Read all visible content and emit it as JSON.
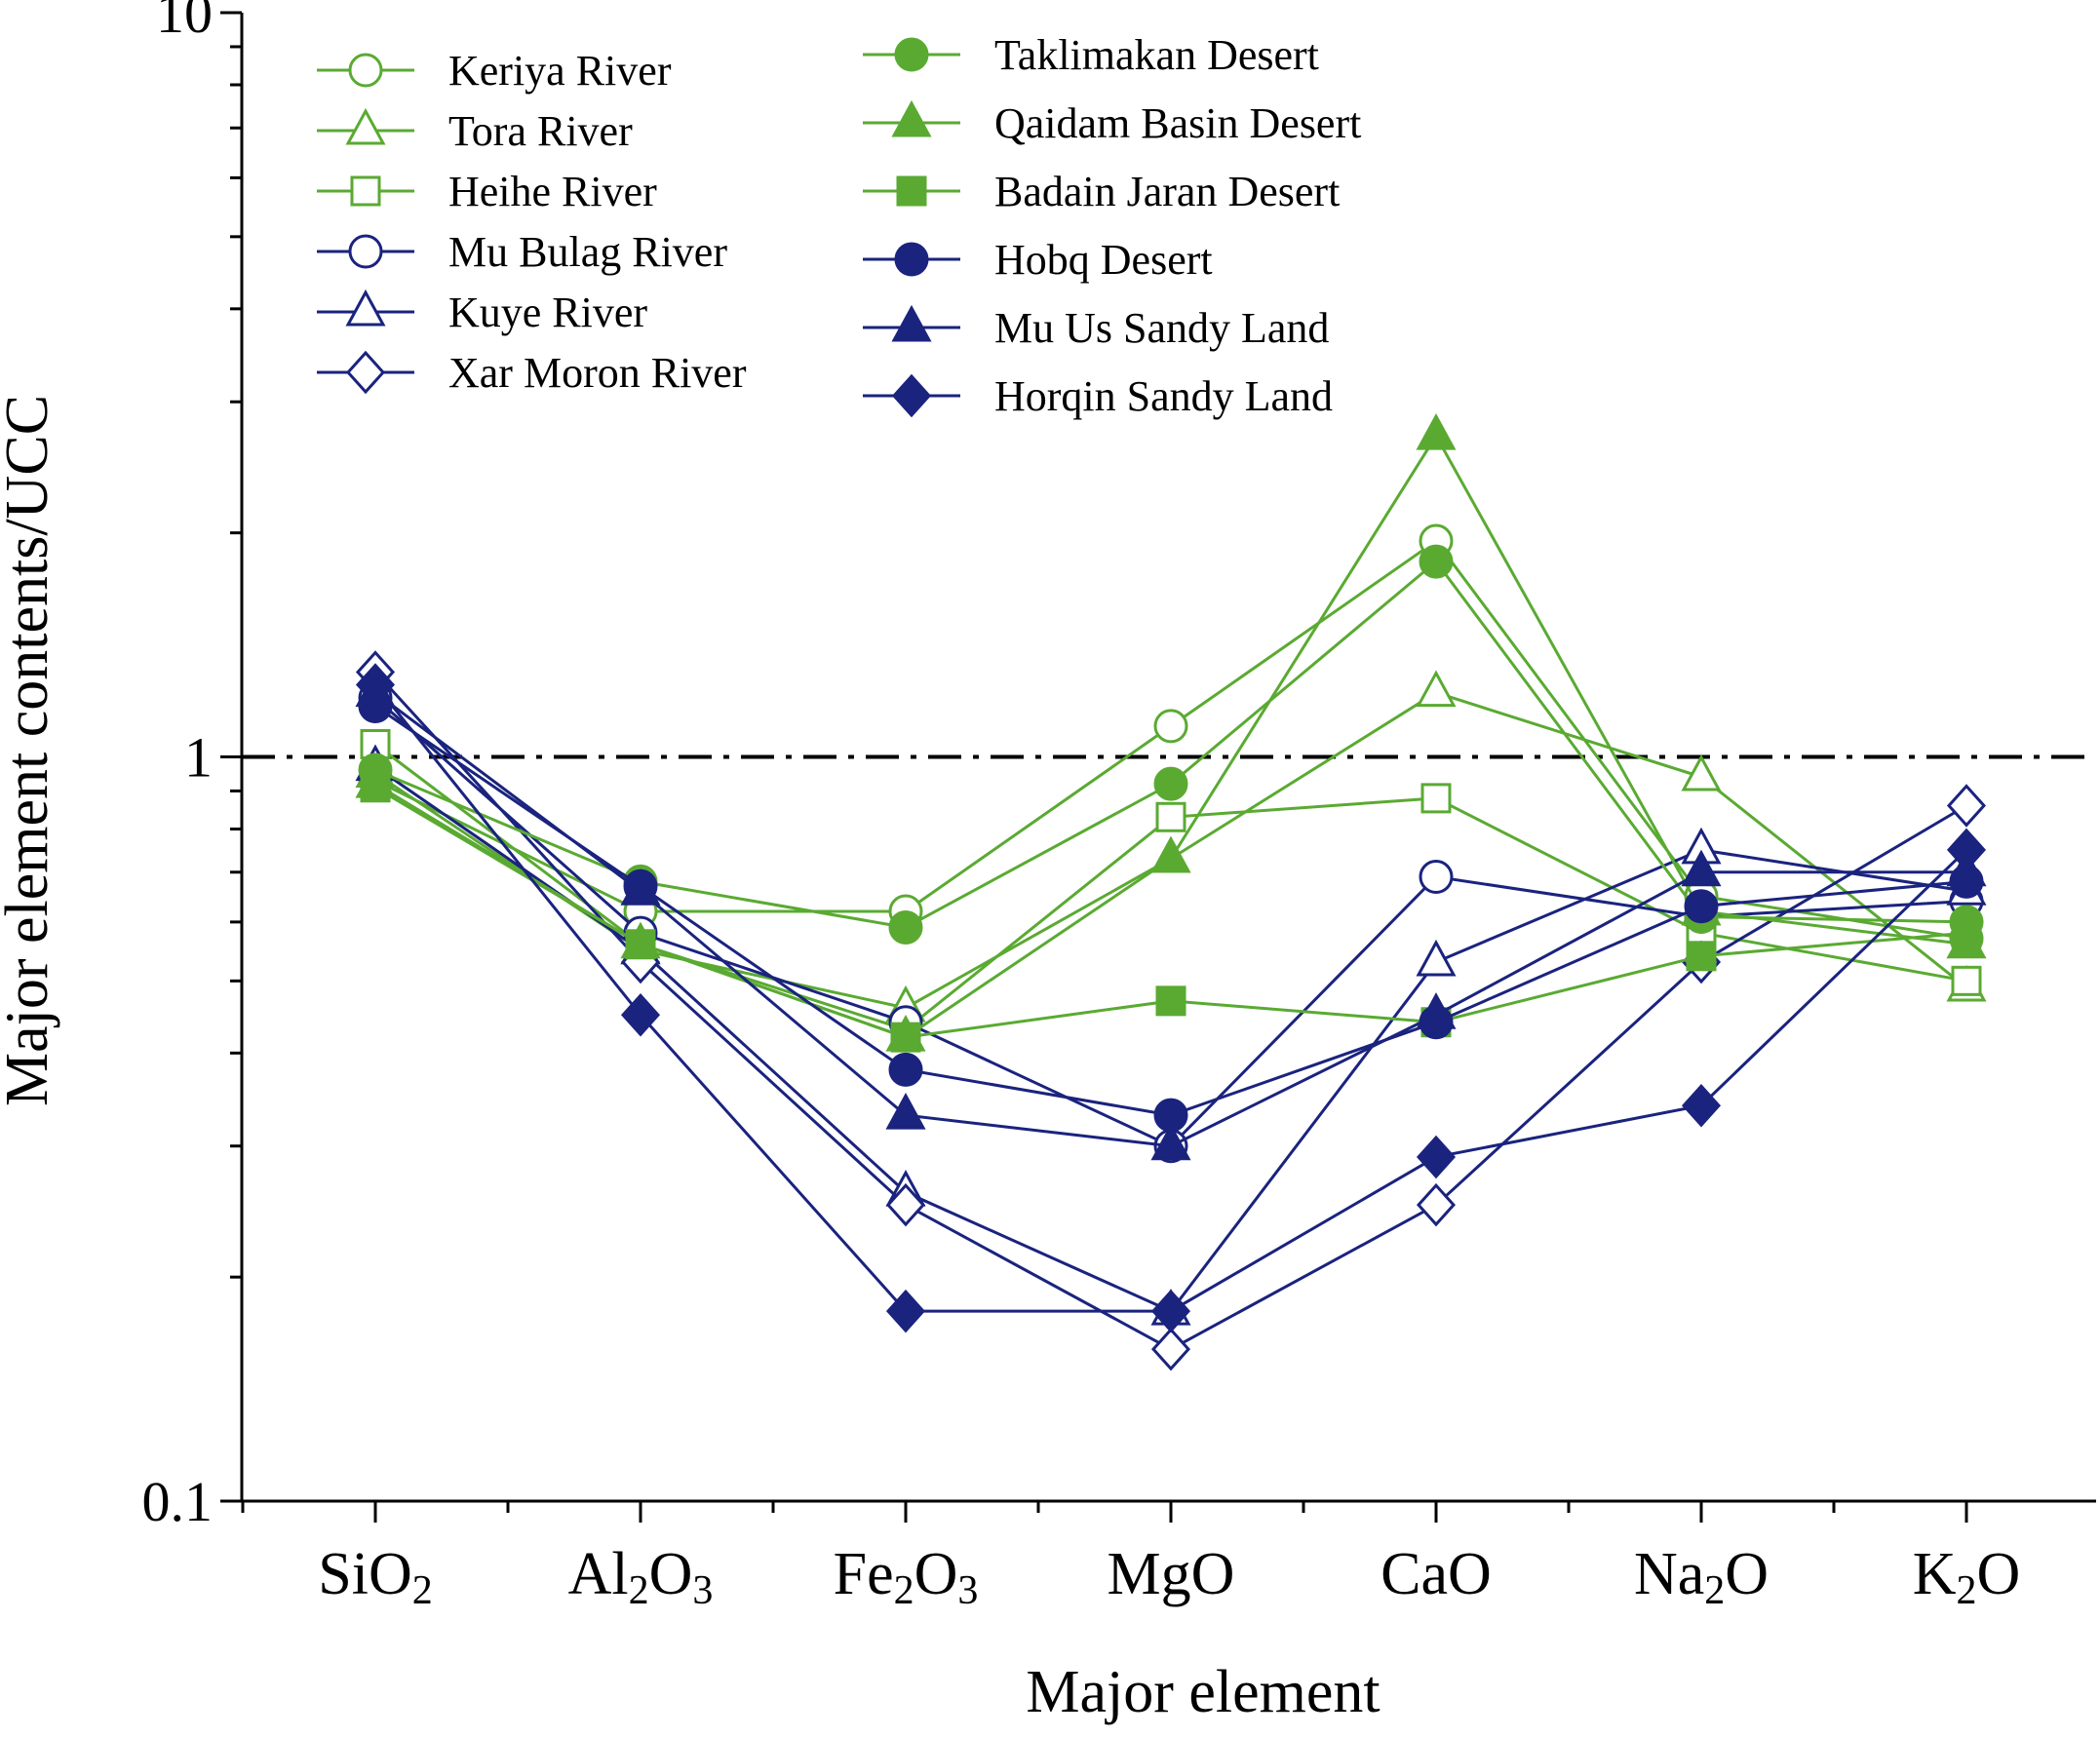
{
  "chart_data": {
    "type": "line",
    "xlabel": "Major element",
    "ylabel": "Major element contents/UCC",
    "yscale": "log",
    "ylim": [
      0.1,
      10
    ],
    "yticks": [
      "0.1",
      "1",
      "10"
    ],
    "reference_line": {
      "y": 1,
      "style": "dash-dot"
    },
    "legend_position": "top, two columns",
    "categories": [
      {
        "base": "SiO",
        "sub": "2",
        "tail": ""
      },
      {
        "base": "Al",
        "sub": "2",
        "tail": "O",
        "sub2": "3"
      },
      {
        "base": "Fe",
        "sub": "2",
        "tail": "O",
        "sub2": "3"
      },
      {
        "base": "MgO",
        "sub": "",
        "tail": ""
      },
      {
        "base": "CaO",
        "sub": "",
        "tail": ""
      },
      {
        "base": "Na",
        "sub": "2",
        "tail": "O"
      },
      {
        "base": "K",
        "sub": "2",
        "tail": "O"
      }
    ],
    "series": [
      {
        "name": "Keriya River",
        "color": "#5aaa32",
        "marker": "circle",
        "filled": false,
        "values": [
          0.93,
          0.62,
          0.62,
          1.1,
          1.95,
          0.65,
          0.57
        ]
      },
      {
        "name": "Tora River",
        "color": "#5aaa32",
        "marker": "triangle",
        "filled": false,
        "values": [
          0.95,
          0.55,
          0.46,
          0.73,
          1.22,
          0.94,
          0.49
        ]
      },
      {
        "name": "Heihe River",
        "color": "#5aaa32",
        "marker": "square",
        "filled": false,
        "values": [
          1.04,
          0.56,
          0.43,
          0.83,
          0.88,
          0.58,
          0.5
        ]
      },
      {
        "name": "Mu Bulag River",
        "color": "#1a237e",
        "marker": "circle",
        "filled": false,
        "values": [
          1.2,
          0.58,
          0.44,
          0.3,
          0.69,
          0.61,
          0.64
        ]
      },
      {
        "name": "Kuye River",
        "color": "#1a237e",
        "marker": "triangle",
        "filled": false,
        "values": [
          0.97,
          0.55,
          0.26,
          0.18,
          0.53,
          0.75,
          0.66
        ]
      },
      {
        "name": "Xar Moron River",
        "color": "#1a237e",
        "marker": "diamond",
        "filled": false,
        "values": [
          1.3,
          0.53,
          0.25,
          0.16,
          0.25,
          0.53,
          0.86
        ]
      },
      {
        "name": "Taklimakan Desert",
        "color": "#5aaa32",
        "marker": "circle",
        "filled": true,
        "values": [
          0.96,
          0.68,
          0.59,
          0.92,
          1.83,
          0.61,
          0.6
        ]
      },
      {
        "name": "Qaidam Basin Desert",
        "color": "#5aaa32",
        "marker": "triangle",
        "filled": true,
        "values": [
          0.92,
          0.56,
          0.42,
          0.73,
          2.7,
          0.62,
          0.56
        ]
      },
      {
        "name": "Badain Jaran Desert",
        "color": "#5aaa32",
        "marker": "square",
        "filled": true,
        "values": [
          0.91,
          0.56,
          0.42,
          0.47,
          0.44,
          0.54,
          0.58
        ]
      },
      {
        "name": "Hobq Desert",
        "color": "#1a237e",
        "marker": "circle",
        "filled": true,
        "values": [
          1.17,
          0.67,
          0.38,
          0.33,
          0.44,
          0.63,
          0.68
        ]
      },
      {
        "name": "Mu Us Sandy Land",
        "color": "#1a237e",
        "marker": "triangle",
        "filled": true,
        "values": [
          1.22,
          0.66,
          0.33,
          0.3,
          0.45,
          0.7,
          0.7
        ]
      },
      {
        "name": "Horqin Sandy Land",
        "color": "#1a237e",
        "marker": "diamond",
        "filled": true,
        "values": [
          1.25,
          0.45,
          0.18,
          0.18,
          0.29,
          0.34,
          0.75
        ]
      }
    ]
  }
}
